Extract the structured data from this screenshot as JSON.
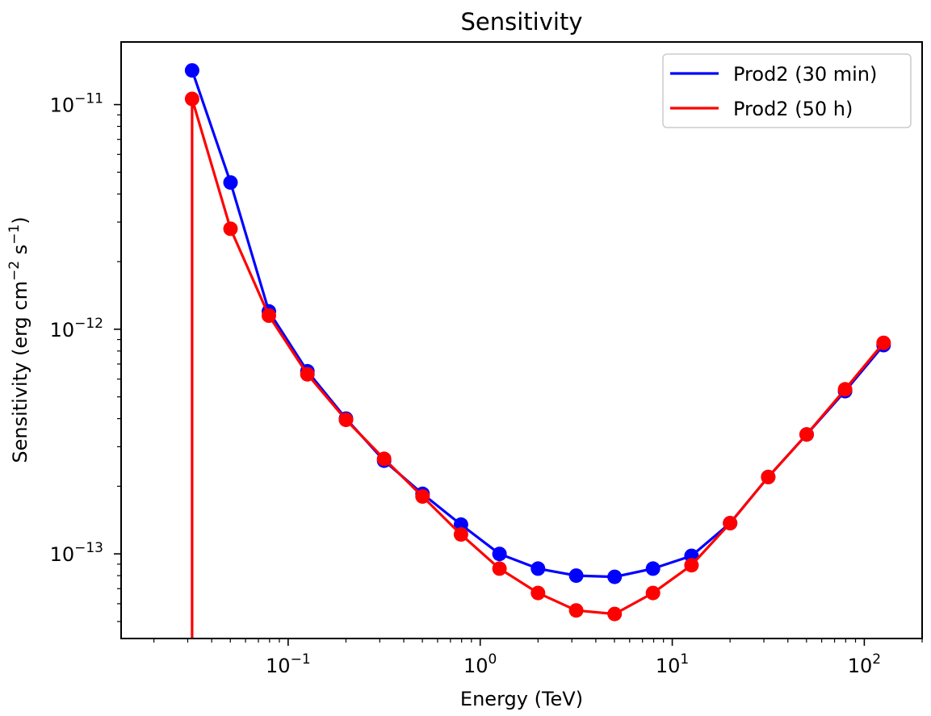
{
  "chart_data": {
    "type": "line",
    "title": "Sensitivity",
    "xlabel": "Energy (TeV)",
    "ylabel_main": "Sensitivity (erg cm",
    "ylabel_exp1": "−2",
    "ylabel_mid": " s",
    "ylabel_exp2": "−1",
    "ylabel_end": ")",
    "xscale": "log",
    "yscale": "log",
    "xlim": [
      0.0135,
      200
    ],
    "ylim": [
      4.2e-14,
      1.9e-11
    ],
    "x_ticks": [
      {
        "value": 0.1,
        "base": "10",
        "exp": "−1"
      },
      {
        "value": 1,
        "base": "10",
        "exp": "0"
      },
      {
        "value": 10,
        "base": "10",
        "exp": "1"
      },
      {
        "value": 100,
        "base": "10",
        "exp": "2"
      }
    ],
    "y_ticks": [
      {
        "value": 1e-13,
        "base": "10",
        "exp": "−13"
      },
      {
        "value": 1e-12,
        "base": "10",
        "exp": "−12"
      },
      {
        "value": 1e-11,
        "base": "10",
        "exp": "−11"
      }
    ],
    "grid": false,
    "legend_position": "top-right",
    "series": [
      {
        "name": "Prod2 (30 min)",
        "color": "#0000ff",
        "x": [
          0.0316,
          0.0501,
          0.0794,
          0.126,
          0.2,
          0.316,
          0.501,
          0.794,
          1.26,
          2.0,
          3.16,
          5.01,
          7.94,
          12.6,
          20.0,
          31.6,
          50.1,
          79.4,
          126
        ],
        "y": [
          1.42e-11,
          4.5e-12,
          1.2e-12,
          6.5e-13,
          4e-13,
          2.6e-13,
          1.85e-13,
          1.35e-13,
          1e-13,
          8.6e-14,
          8e-14,
          7.9e-14,
          8.6e-14,
          9.8e-14,
          1.37e-13,
          2.2e-13,
          3.4e-13,
          5.3e-13,
          8.5e-13
        ]
      },
      {
        "name": "Prod2 (50 h)",
        "color": "#ff0000",
        "x": [
          0.0316,
          0.0501,
          0.0794,
          0.126,
          0.2,
          0.316,
          0.501,
          0.794,
          1.26,
          2.0,
          3.16,
          5.01,
          7.94,
          12.6,
          20.0,
          31.6,
          50.1,
          79.4,
          126
        ],
        "y": [
          1.06e-11,
          2.8e-12,
          1.15e-12,
          6.3e-13,
          3.95e-13,
          2.65e-13,
          1.8e-13,
          1.22e-13,
          8.6e-14,
          6.7e-14,
          5.6e-14,
          5.4e-14,
          6.7e-14,
          8.9e-14,
          1.37e-13,
          2.2e-13,
          3.4e-13,
          5.4e-13,
          8.7e-13
        ],
        "drop_to_floor_at_x": 0.0316
      }
    ]
  }
}
